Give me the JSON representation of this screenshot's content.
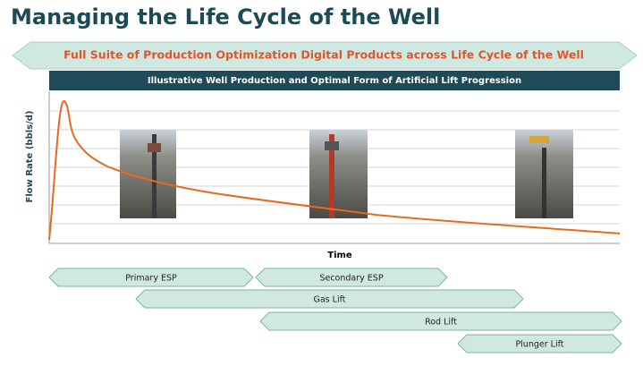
{
  "header": {
    "title": "Managing the Life Cycle of the Well"
  },
  "banner": {
    "text": "Full Suite of Production Optimization Digital Products across Life Cycle of the Well"
  },
  "chart": {
    "title": "Illustrative Well Production and Optimal Form of Artificial Lift Progression",
    "y_label": "Flow Rate (bbls/d)",
    "x_label": "Time"
  },
  "phases": [
    "Primary ESP",
    "Secondary ESP",
    "Gas Lift",
    "Rod Lift",
    "Plunger Lift"
  ]
}
